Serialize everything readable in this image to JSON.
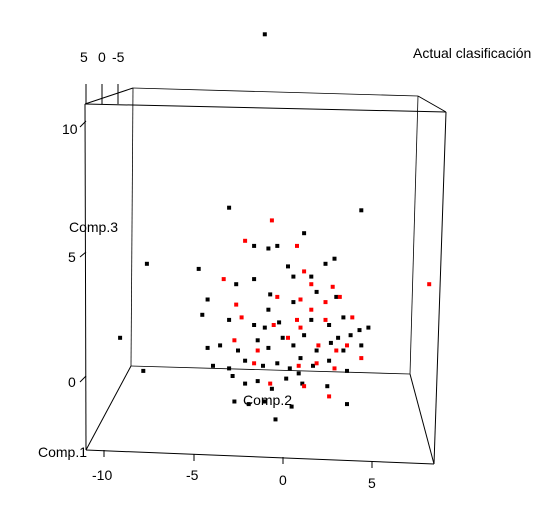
{
  "chart_data": {
    "type": "scatter",
    "title": "Actual clasificación",
    "axis_labels": {
      "x": "Comp.1",
      "y": "Comp.2",
      "z": "Comp.3"
    },
    "x_ticks": [
      "-10",
      "-5",
      "0",
      "5"
    ],
    "z_ticks": [
      "10",
      "5",
      "0"
    ],
    "top_ticks": [
      "5",
      "0",
      "-5"
    ],
    "colors": {
      "class_1": "#000000",
      "class_2": "#ff0000"
    },
    "series": [
      {
        "color": "#000000",
        "points": [
          [
            -1,
            13.4
          ],
          [
            -3,
            6.6
          ],
          [
            1.2,
            5.6
          ],
          [
            4.4,
            6.5
          ],
          [
            -7.6,
            4.4
          ],
          [
            -4.7,
            4.2
          ],
          [
            -9.1,
            1.5
          ],
          [
            -7.8,
            0.2
          ],
          [
            -1.6,
            5.1
          ],
          [
            -0.8,
            5.0
          ],
          [
            -0.3,
            5.1
          ],
          [
            0.3,
            4.3
          ],
          [
            2.4,
            4.4
          ],
          [
            2.9,
            4.6
          ],
          [
            -2.6,
            3.6
          ],
          [
            -4.2,
            3.0
          ],
          [
            -1.6,
            3.8
          ],
          [
            -0.7,
            3.2
          ],
          [
            0.6,
            3.9
          ],
          [
            1.9,
            3.3
          ],
          [
            3.0,
            3.1
          ],
          [
            -4.5,
            2.4
          ],
          [
            -3.0,
            2.2
          ],
          [
            -1.6,
            2.0
          ],
          [
            -0.8,
            2.6
          ],
          [
            -0.2,
            2.1
          ],
          [
            1.6,
            2.2
          ],
          [
            2.6,
            2.0
          ],
          [
            3.4,
            2.3
          ],
          [
            4.3,
            1.8
          ],
          [
            4.8,
            1.9
          ],
          [
            -4.2,
            1.1
          ],
          [
            -3.5,
            1.2
          ],
          [
            -2.5,
            1.0
          ],
          [
            -1.4,
            1.4
          ],
          [
            -0.8,
            1.1
          ],
          [
            0.0,
            1.5
          ],
          [
            0.6,
            1.2
          ],
          [
            1.2,
            1.6
          ],
          [
            1.9,
            1.0
          ],
          [
            2.7,
            1.3
          ],
          [
            3.4,
            1.0
          ],
          [
            3.8,
            1.6
          ],
          [
            4.4,
            1.2
          ],
          [
            -3.9,
            0.4
          ],
          [
            -3.0,
            0.3
          ],
          [
            -2.1,
            0.6
          ],
          [
            -1.1,
            0.4
          ],
          [
            -0.3,
            0.5
          ],
          [
            0.4,
            0.3
          ],
          [
            1.0,
            0.7
          ],
          [
            1.7,
            0.4
          ],
          [
            2.6,
            0.6
          ],
          [
            3.6,
            0.2
          ],
          [
            -2.1,
            -0.3
          ],
          [
            -1.4,
            -0.2
          ],
          [
            -0.6,
            -0.5
          ],
          [
            0.2,
            -0.1
          ],
          [
            1.1,
            -0.3
          ],
          [
            2.5,
            -0.4
          ],
          [
            -2.7,
            -1.0
          ],
          [
            -1.9,
            -1.1
          ],
          [
            -1.0,
            -1.0
          ],
          [
            -0.4,
            -1.7
          ],
          [
            0.5,
            -1.2
          ],
          [
            3.6,
            -1.1
          ],
          [
            -2.8,
            0.0
          ],
          [
            0.6,
            2.9
          ],
          [
            1.6,
            3.9
          ],
          [
            -1.0,
            1.9
          ],
          [
            3.1,
            1.5
          ],
          [
            0.9,
            0.1
          ]
        ]
      },
      {
        "color": "#ff0000",
        "points": [
          [
            -2.1,
            5.3
          ],
          [
            -0.6,
            6.1
          ],
          [
            0.8,
            5.1
          ],
          [
            1.2,
            4.1
          ],
          [
            2.8,
            3.5
          ],
          [
            -3.3,
            3.8
          ],
          [
            -2.6,
            2.8
          ],
          [
            -0.3,
            3.1
          ],
          [
            1.6,
            3.6
          ],
          [
            1.0,
            3.0
          ],
          [
            2.4,
            2.9
          ],
          [
            3.2,
            3.1
          ],
          [
            -2.3,
            2.3
          ],
          [
            -0.5,
            2.0
          ],
          [
            0.8,
            2.2
          ],
          [
            1.6,
            2.6
          ],
          [
            2.4,
            2.2
          ],
          [
            3.9,
            2.3
          ],
          [
            -2.7,
            1.4
          ],
          [
            -1.4,
            1.0
          ],
          [
            0.3,
            1.5
          ],
          [
            1.0,
            1.9
          ],
          [
            2.0,
            1.2
          ],
          [
            3.0,
            1.0
          ],
          [
            3.6,
            1.2
          ],
          [
            -1.6,
            0.5
          ],
          [
            0.9,
            0.4
          ],
          [
            1.9,
            0.5
          ],
          [
            2.9,
            0.3
          ],
          [
            4.4,
            0.7
          ],
          [
            -0.7,
            -0.3
          ],
          [
            1.2,
            -0.4
          ],
          [
            2.6,
            -0.8
          ],
          [
            8.2,
            3.6
          ]
        ]
      }
    ]
  }
}
